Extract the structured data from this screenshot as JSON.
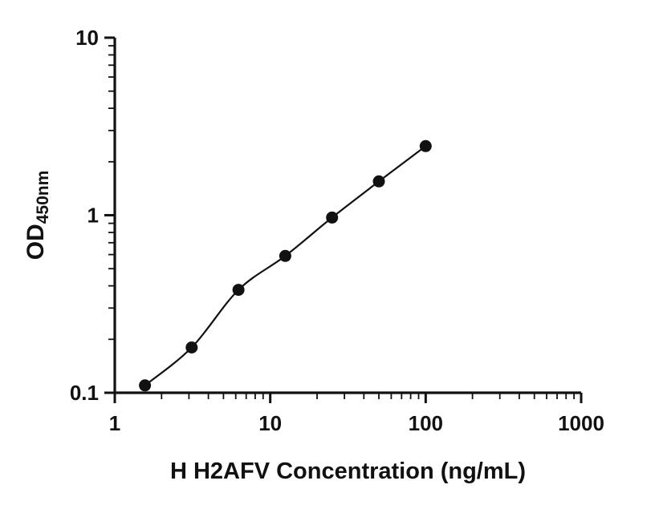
{
  "chart_data": {
    "type": "scatter",
    "title": "",
    "xlabel": "H H2AFV Concentration (ng/mL)",
    "ylabel": "OD",
    "ylabel_subscript": "450nm",
    "xscale": "log",
    "yscale": "log",
    "xlim": [
      1,
      1000
    ],
    "ylim": [
      0.1,
      10
    ],
    "x_tick_values": [
      1,
      10,
      100,
      1000
    ],
    "x_tick_labels": [
      "1",
      "10",
      "100",
      "1000"
    ],
    "y_tick_values": [
      0.1,
      1,
      10
    ],
    "y_tick_labels": [
      "0.1",
      "1",
      "10"
    ],
    "grid": false,
    "legend": false,
    "series": [
      {
        "x": [
          1.563,
          3.125,
          6.25,
          12.5,
          25,
          50,
          100
        ],
        "y": [
          0.11,
          0.18,
          0.38,
          0.59,
          0.97,
          1.55,
          2.45
        ],
        "marker": "circle",
        "marker_color": "#111111",
        "line_color": "#111111",
        "line_style": "smooth"
      }
    ]
  },
  "colors": {
    "background": "#ffffff",
    "axis": "#111111",
    "text": "#111111"
  }
}
